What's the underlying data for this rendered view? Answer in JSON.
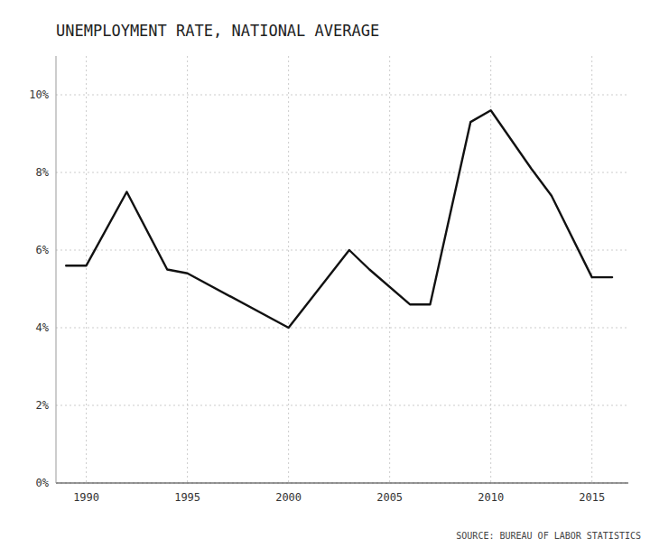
{
  "chart_data": {
    "type": "line",
    "title": "UNEMPLOYMENT RATE, NATIONAL AVERAGE",
    "annotations": [
      "SOURCE: BUREAU OF LABOR STATISTICS"
    ],
    "x": [
      1989,
      1990,
      1992,
      1994,
      1995,
      2000,
      2003,
      2004,
      2006,
      2007,
      2009,
      2010,
      2012,
      2013,
      2015,
      2016
    ],
    "values": [
      5.6,
      5.6,
      7.5,
      5.5,
      5.4,
      4.0,
      6.0,
      5.5,
      4.6,
      4.6,
      9.3,
      9.6,
      8.1,
      7.4,
      5.3,
      5.3
    ],
    "color": "#111111",
    "xlim": [
      1988.5,
      2016.8
    ],
    "ylim": [
      0,
      11
    ],
    "xticks": [
      1990,
      1995,
      2000,
      2005,
      2010,
      2015
    ],
    "yticks": [
      {
        "value": 0,
        "label": "0%"
      },
      {
        "value": 2,
        "label": "2%"
      },
      {
        "value": 4,
        "label": "4%"
      },
      {
        "value": 6,
        "label": "6%"
      },
      {
        "value": 8,
        "label": "8%"
      },
      {
        "value": 10,
        "label": "10%"
      }
    ],
    "grid": true
  }
}
